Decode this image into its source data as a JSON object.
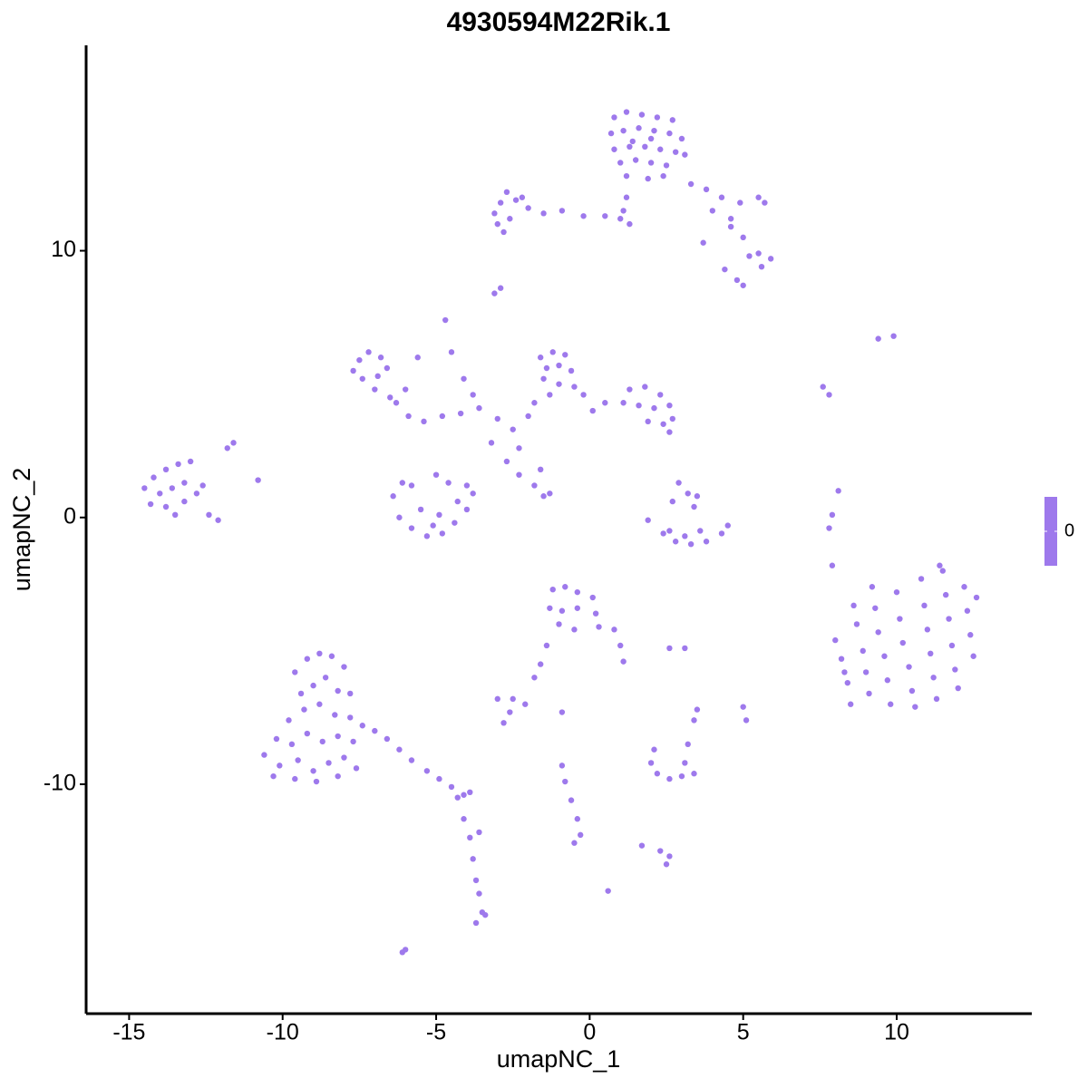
{
  "chart_data": {
    "type": "scatter",
    "title": "4930594M22Rik.1",
    "xlabel": "umapNC_1",
    "ylabel": "umapNC_2",
    "color": "#9e79ec",
    "xlim": [
      -16.4,
      14.4
    ],
    "ylim": [
      -18.6,
      17.7
    ],
    "xticks": [
      -15,
      -10,
      -5,
      0,
      5,
      10
    ],
    "yticks": [
      -10,
      0,
      10
    ],
    "colorbar_ticks": [
      0
    ],
    "x": [
      0.8,
      1.2,
      1.7,
      2.2,
      2.7,
      0.7,
      1.1,
      1.6,
      2.1,
      2.6,
      3.0,
      0.8,
      1.3,
      1.8,
      2.3,
      2.8,
      1.0,
      1.5,
      2.0,
      2.5,
      3.1,
      1.2,
      1.9,
      2.4,
      1.4,
      2.0,
      1.1,
      1.0,
      1.2,
      1.3,
      0.5,
      -0.2,
      -0.9,
      -1.5,
      -2.0,
      -2.4,
      -2.9,
      -3.1,
      -2.6,
      -2.2,
      -2.7,
      -3.0,
      -2.8,
      3.3,
      3.8,
      4.3,
      4.9,
      5.5,
      5.7,
      4.0,
      4.6,
      5.0,
      5.5,
      5.9,
      5.6,
      5.2,
      4.4,
      4.8,
      5.0,
      3.7,
      4.6,
      -2.9,
      -3.1,
      -7.5,
      -7.2,
      -6.8,
      -7.7,
      -7.4,
      -6.9,
      -6.6,
      -7.0,
      -6.5,
      -6.3,
      -5.9,
      -5.4,
      -4.8,
      -4.2,
      -3.6,
      -3.0,
      -2.5,
      -2.3,
      -2.7,
      -3.2,
      -4.7,
      -4.5,
      -4.1,
      -3.8,
      -5.6,
      -6.0,
      -1.6,
      -1.2,
      -0.8,
      -1.4,
      -1.0,
      -0.6,
      -1.5,
      -1.0,
      -0.5,
      -0.2,
      -1.3,
      -1.8,
      -2.0,
      1.3,
      1.8,
      2.3,
      2.6,
      2.1,
      1.6,
      1.1,
      1.9,
      2.4,
      2.7,
      0.5,
      0.1,
      2.6,
      -14.5,
      -14.2,
      -13.8,
      -13.4,
      -13.0,
      -14.0,
      -13.6,
      -13.2,
      -14.3,
      -13.8,
      -13.2,
      -12.8,
      -12.6,
      -12.4,
      -12.1,
      -11.6,
      -11.8,
      -10.8,
      -13.5,
      -6.4,
      -6.1,
      -5.8,
      -6.2,
      -5.8,
      -5.3,
      -4.8,
      -4.4,
      -4.0,
      -3.8,
      -4.0,
      -5.5,
      -4.9,
      -5.1,
      -4.3,
      -4.6,
      -5.0,
      -2.3,
      -1.8,
      -1.5,
      -1.6,
      -1.3,
      1.9,
      2.4,
      2.8,
      3.3,
      3.8,
      4.3,
      4.5,
      2.6,
      3.1,
      3.6,
      3.2,
      3.4,
      2.9,
      2.7,
      3.5,
      7.6,
      7.8,
      8.1,
      7.9,
      7.8,
      7.9,
      9.4,
      9.9,
      8.0,
      8.2,
      8.4,
      8.5,
      8.7,
      8.9,
      9.0,
      9.1,
      9.3,
      9.4,
      9.6,
      9.7,
      9.8,
      10.0,
      10.1,
      10.2,
      10.4,
      10.5,
      10.6,
      10.8,
      10.9,
      11.0,
      11.1,
      11.2,
      11.3,
      11.5,
      11.6,
      11.7,
      11.8,
      11.9,
      12.0,
      12.2,
      12.3,
      12.4,
      12.5,
      12.6,
      8.6,
      9.2,
      8.3,
      11.4,
      -1.2,
      -0.8,
      -0.4,
      0.1,
      -1.3,
      -0.9,
      -0.4,
      0.2,
      -1.0,
      -0.5,
      0.3,
      0.8,
      1.0,
      1.1,
      -1.4,
      -1.6,
      -1.8,
      -3.0,
      -2.5,
      -2.1,
      -2.6,
      -2.8,
      -0.9,
      2.6,
      3.1,
      3.5,
      3.4,
      5.0,
      5.1,
      -9.6,
      -9.2,
      -8.8,
      -8.4,
      -8.0,
      -9.4,
      -9.0,
      -8.6,
      -8.2,
      -7.8,
      -9.8,
      -9.3,
      -8.8,
      -8.3,
      -7.8,
      -7.4,
      -10.2,
      -9.7,
      -9.2,
      -8.7,
      -8.2,
      -7.7,
      -10.6,
      -10.1,
      -9.5,
      -9.0,
      -8.5,
      -8.0,
      -7.6,
      -10.3,
      -9.6,
      -8.9,
      -8.2,
      -7.0,
      -6.6,
      -6.2,
      -5.8,
      -5.3,
      -4.9,
      -4.5,
      -4.1,
      -3.9,
      -4.3,
      -4.1,
      -3.9,
      -3.6,
      -3.8,
      -3.7,
      -3.6,
      -3.5,
      -3.7,
      -3.4,
      -6.1,
      -6.0,
      -0.9,
      -0.8,
      -0.6,
      -0.4,
      -0.3,
      -0.5,
      0.6,
      2.2,
      2.6,
      3.0,
      3.4,
      3.1,
      2.0,
      2.1,
      3.2,
      2.3,
      2.6,
      2.5,
      1.7
    ],
    "y": [
      15.0,
      15.2,
      15.1,
      15.0,
      14.9,
      14.4,
      14.5,
      14.6,
      14.5,
      14.4,
      14.2,
      13.8,
      13.9,
      13.9,
      13.8,
      13.7,
      13.3,
      13.4,
      13.3,
      13.2,
      13.6,
      12.8,
      12.7,
      12.8,
      14.1,
      14.2,
      11.5,
      11.2,
      12.0,
      11.0,
      11.3,
      11.3,
      11.5,
      11.4,
      11.6,
      11.9,
      11.8,
      11.4,
      11.2,
      12.0,
      12.2,
      11.0,
      10.7,
      12.5,
      12.3,
      12.0,
      11.8,
      12.0,
      11.8,
      11.5,
      11.2,
      10.5,
      9.9,
      9.7,
      9.4,
      9.8,
      9.3,
      8.9,
      8.7,
      10.3,
      10.9,
      8.6,
      8.4,
      5.9,
      6.2,
      6.0,
      5.5,
      5.2,
      5.3,
      5.6,
      4.8,
      4.5,
      4.3,
      3.8,
      3.6,
      3.8,
      3.9,
      4.1,
      3.7,
      3.3,
      2.6,
      2.1,
      2.8,
      7.4,
      6.2,
      5.2,
      4.6,
      6.0,
      4.8,
      6.0,
      6.2,
      6.1,
      5.6,
      5.7,
      5.5,
      5.2,
      5.0,
      4.9,
      4.6,
      4.6,
      4.3,
      3.8,
      4.8,
      4.9,
      4.6,
      4.2,
      4.1,
      4.2,
      4.3,
      3.6,
      3.5,
      3.7,
      4.3,
      4.0,
      3.2,
      1.1,
      1.5,
      1.8,
      2.0,
      2.1,
      0.9,
      1.1,
      1.3,
      0.5,
      0.4,
      0.6,
      0.9,
      1.2,
      0.1,
      -0.1,
      2.8,
      2.6,
      1.4,
      0.1,
      0.8,
      1.3,
      1.2,
      0.0,
      -0.4,
      -0.7,
      -0.6,
      -0.2,
      0.3,
      0.9,
      1.2,
      0.3,
      0.1,
      -0.3,
      0.6,
      1.3,
      1.6,
      1.6,
      1.2,
      0.8,
      1.8,
      0.9,
      -0.1,
      -0.6,
      -0.9,
      -1.0,
      -0.9,
      -0.6,
      -0.3,
      -0.5,
      -0.7,
      -0.5,
      0.9,
      0.4,
      1.3,
      0.6,
      0.8,
      4.9,
      4.6,
      1.0,
      0.1,
      -0.4,
      -1.8,
      6.7,
      6.8,
      -4.6,
      -5.3,
      -6.2,
      -7.0,
      -4.0,
      -5.0,
      -5.8,
      -6.6,
      -3.4,
      -4.3,
      -5.2,
      -6.1,
      -7.0,
      -2.8,
      -3.8,
      -4.7,
      -5.6,
      -6.5,
      -7.1,
      -2.3,
      -3.3,
      -4.2,
      -5.1,
      -6.0,
      -6.8,
      -2.0,
      -2.9,
      -3.8,
      -4.8,
      -5.7,
      -6.4,
      -2.6,
      -3.5,
      -4.4,
      -5.2,
      -3.0,
      -3.3,
      -2.6,
      -5.8,
      -1.8,
      -2.7,
      -2.6,
      -2.8,
      -3.0,
      -3.4,
      -3.5,
      -3.4,
      -3.6,
      -4.0,
      -4.2,
      -4.1,
      -4.2,
      -4.8,
      -5.4,
      -4.8,
      -5.5,
      -6.0,
      -6.8,
      -6.8,
      -7.0,
      -7.3,
      -7.7,
      -7.3,
      -4.9,
      -4.9,
      -7.2,
      -7.6,
      -7.1,
      -7.6,
      -5.8,
      -5.3,
      -5.1,
      -5.2,
      -5.6,
      -6.6,
      -6.3,
      -6.0,
      -6.5,
      -6.6,
      -7.6,
      -7.2,
      -7.0,
      -7.4,
      -7.5,
      -7.8,
      -8.3,
      -8.5,
      -8.1,
      -8.4,
      -8.2,
      -8.4,
      -8.9,
      -9.3,
      -9.1,
      -9.5,
      -9.2,
      -9.0,
      -9.4,
      -9.7,
      -9.8,
      -9.9,
      -9.7,
      -8.0,
      -8.3,
      -8.7,
      -9.1,
      -9.5,
      -9.8,
      -10.1,
      -10.4,
      -10.3,
      -10.5,
      -11.3,
      -12.0,
      -11.8,
      -12.8,
      -13.6,
      -14.1,
      -14.8,
      -15.2,
      -14.9,
      -16.3,
      -16.2,
      -9.3,
      -9.9,
      -10.6,
      -11.3,
      -11.9,
      -12.2,
      -14.0,
      -9.6,
      -9.8,
      -9.7,
      -9.6,
      -9.2,
      -9.2,
      -8.7,
      -8.5,
      -12.5,
      -12.7,
      -13.0,
      -12.3
    ]
  }
}
